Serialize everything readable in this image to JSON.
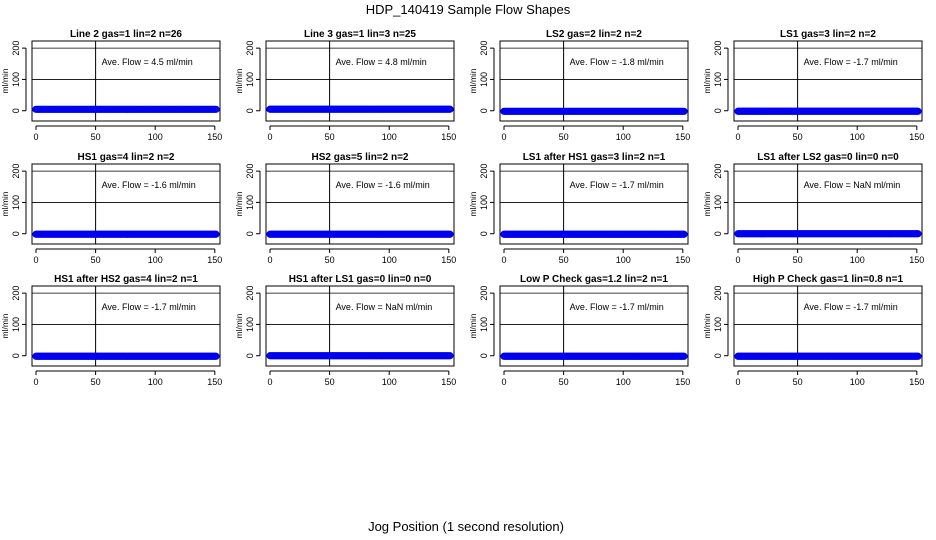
{
  "figure": {
    "title": "HDP_140419  Sample Flow Shapes",
    "xlabel": "Jog Position (1 second resolution)"
  },
  "colors": {
    "points": "#0000ee",
    "axis": "#000000",
    "background": "#ffffff"
  },
  "chart_data": [
    {
      "type": "scatter",
      "title": "Line 2 gas=1 lin=2 n=26",
      "annotation": "Ave. Flow =  4.5  ml/min",
      "ylabel": "ml/min",
      "xticks": [
        0,
        50,
        100,
        150
      ],
      "yticks": [
        0,
        100,
        200
      ],
      "xlim": [
        0,
        151
      ],
      "ylim": [
        -20,
        210
      ],
      "vline": 50,
      "x_range": [
        0,
        151
      ],
      "y_value": 4.5
    },
    {
      "type": "scatter",
      "title": "Line 3 gas=1 lin=3 n=25",
      "annotation": "Ave. Flow =  4.8  ml/min",
      "ylabel": "ml/min",
      "xticks": [
        0,
        50,
        100,
        150
      ],
      "yticks": [
        0,
        100,
        200
      ],
      "xlim": [
        0,
        151
      ],
      "ylim": [
        -20,
        210
      ],
      "vline": 50,
      "x_range": [
        0,
        151
      ],
      "y_value": 4.8
    },
    {
      "type": "scatter",
      "title": "LS2 gas=2 lin=2 n=2",
      "annotation": "Ave. Flow =  -1.8  ml/min",
      "ylabel": "ml/min",
      "xticks": [
        0,
        50,
        100,
        150
      ],
      "yticks": [
        0,
        100,
        200
      ],
      "xlim": [
        0,
        151
      ],
      "ylim": [
        -20,
        210
      ],
      "vline": 50,
      "x_range": [
        0,
        151
      ],
      "y_value": -1.8
    },
    {
      "type": "scatter",
      "title": "LS1 gas=3 lin=2 n=2",
      "annotation": "Ave. Flow =  -1.7  ml/min",
      "ylabel": "ml/min",
      "xticks": [
        0,
        50,
        100,
        150
      ],
      "yticks": [
        0,
        100,
        200
      ],
      "xlim": [
        0,
        151
      ],
      "ylim": [
        -20,
        210
      ],
      "vline": 50,
      "x_range": [
        0,
        151
      ],
      "y_value": -1.7
    },
    {
      "type": "scatter",
      "title": "HS1 gas=4 lin=2 n=2",
      "annotation": "Ave. Flow =  -1.6  ml/min",
      "ylabel": "ml/min",
      "xticks": [
        0,
        50,
        100,
        150
      ],
      "yticks": [
        0,
        100,
        200
      ],
      "xlim": [
        0,
        151
      ],
      "ylim": [
        -20,
        210
      ],
      "vline": 50,
      "x_range": [
        0,
        151
      ],
      "y_value": -1.6
    },
    {
      "type": "scatter",
      "title": "HS2 gas=5 lin=2 n=2",
      "annotation": "Ave. Flow =  -1.6  ml/min",
      "ylabel": "ml/min",
      "xticks": [
        0,
        50,
        100,
        150
      ],
      "yticks": [
        0,
        100,
        200
      ],
      "xlim": [
        0,
        151
      ],
      "ylim": [
        -20,
        210
      ],
      "vline": 50,
      "x_range": [
        0,
        151
      ],
      "y_value": -1.6
    },
    {
      "type": "scatter",
      "title": "LS1 after HS1 gas=3 lin=2 n=1",
      "annotation": "Ave. Flow =  -1.7  ml/min",
      "ylabel": "ml/min",
      "xticks": [
        0,
        50,
        100,
        150
      ],
      "yticks": [
        0,
        100,
        200
      ],
      "xlim": [
        0,
        151
      ],
      "ylim": [
        -20,
        210
      ],
      "vline": 50,
      "x_range": [
        0,
        151
      ],
      "y_value": -1.7
    },
    {
      "type": "scatter",
      "title": "LS1 after LS2 gas=0 lin=0 n=0",
      "annotation": "Ave. Flow =  NaN  ml/min",
      "ylabel": "ml/min",
      "xticks": [
        0,
        50,
        100,
        150
      ],
      "yticks": [
        0,
        100,
        200
      ],
      "xlim": [
        0,
        151
      ],
      "ylim": [
        -20,
        210
      ],
      "vline": 50,
      "x_range": [
        0,
        151
      ],
      "y_value": 0
    },
    {
      "type": "scatter",
      "title": "HS1 after HS2 gas=4 lin=2 n=1",
      "annotation": "Ave. Flow =  -1.7  ml/min",
      "ylabel": "ml/min",
      "xticks": [
        0,
        50,
        100,
        150
      ],
      "yticks": [
        0,
        100,
        200
      ],
      "xlim": [
        0,
        151
      ],
      "ylim": [
        -20,
        210
      ],
      "vline": 50,
      "x_range": [
        0,
        151
      ],
      "y_value": -1.7
    },
    {
      "type": "scatter",
      "title": "HS1 after LS1 gas=0 lin=0 n=0",
      "annotation": "Ave. Flow =  NaN  ml/min",
      "ylabel": "ml/min",
      "xticks": [
        0,
        50,
        100,
        150
      ],
      "yticks": [
        0,
        100,
        200
      ],
      "xlim": [
        0,
        151
      ],
      "ylim": [
        -20,
        210
      ],
      "vline": 50,
      "x_range": [
        0,
        151
      ],
      "y_value": 0
    },
    {
      "type": "scatter",
      "title": "Low P Check gas=1.2 lin=2 n=1",
      "annotation": "Ave. Flow =  -1.7  ml/min",
      "ylabel": "ml/min",
      "xticks": [
        0,
        50,
        100,
        150
      ],
      "yticks": [
        0,
        100,
        200
      ],
      "xlim": [
        0,
        151
      ],
      "ylim": [
        -20,
        210
      ],
      "vline": 50,
      "x_range": [
        0,
        151
      ],
      "y_value": -1.7
    },
    {
      "type": "scatter",
      "title": "High P Check gas=1 lin=0.8 n=1",
      "annotation": "Ave. Flow =  -1.7  ml/min",
      "ylabel": "ml/min",
      "xticks": [
        0,
        50,
        100,
        150
      ],
      "yticks": [
        0,
        100,
        200
      ],
      "xlim": [
        0,
        151
      ],
      "ylim": [
        -20,
        210
      ],
      "vline": 50,
      "x_range": [
        0,
        151
      ],
      "y_value": -1.7
    }
  ]
}
